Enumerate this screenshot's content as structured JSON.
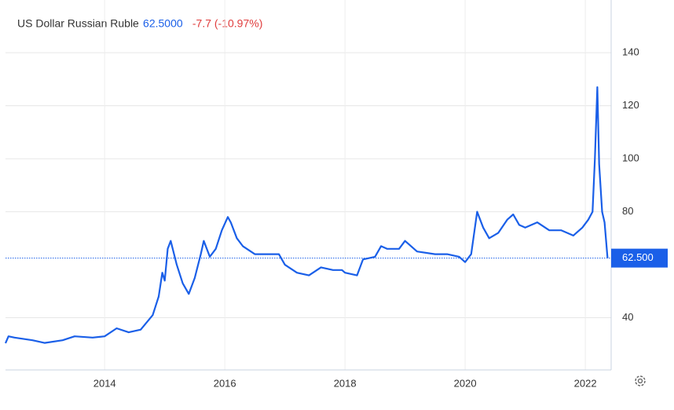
{
  "chart_data": {
    "type": "line",
    "title": "US Dollar Russian Ruble",
    "price": "62.5000",
    "change": "-7.7 (-10.97%)",
    "last_label": "62.500",
    "x": [
      2012.35,
      2012.4,
      2012.5,
      2012.8,
      2013.0,
      2013.3,
      2013.5,
      2013.8,
      2014.0,
      2014.2,
      2014.4,
      2014.6,
      2014.8,
      2014.9,
      2014.96,
      2015.0,
      2015.05,
      2015.1,
      2015.2,
      2015.3,
      2015.4,
      2015.5,
      2015.6,
      2015.65,
      2015.75,
      2015.85,
      2015.95,
      2016.05,
      2016.1,
      2016.2,
      2016.3,
      2016.5,
      2016.7,
      2016.9,
      2017.0,
      2017.2,
      2017.4,
      2017.6,
      2017.8,
      2017.95,
      2018.0,
      2018.2,
      2018.3,
      2018.5,
      2018.6,
      2018.7,
      2018.9,
      2019.0,
      2019.2,
      2019.5,
      2019.7,
      2019.9,
      2020.0,
      2020.1,
      2020.2,
      2020.3,
      2020.4,
      2020.55,
      2020.7,
      2020.8,
      2020.9,
      2021.0,
      2021.2,
      2021.4,
      2021.6,
      2021.8,
      2021.95,
      2022.05,
      2022.12,
      2022.16,
      2022.2,
      2022.23,
      2022.28,
      2022.32,
      2022.37
    ],
    "series": [
      {
        "name": "USDRUB",
        "color": "#1a5fe8",
        "values": [
          30.4,
          33,
          32.5,
          31.5,
          30.5,
          31.5,
          33,
          32.5,
          33,
          36,
          34.5,
          35.5,
          41,
          48,
          57,
          54,
          66,
          69,
          60,
          53,
          49,
          55,
          64,
          69,
          63,
          66,
          73,
          78,
          76,
          70,
          67,
          64,
          64,
          64,
          60,
          57,
          56,
          59,
          58,
          58,
          57,
          56,
          62,
          63,
          67,
          66,
          66,
          69,
          65,
          64,
          64,
          63,
          61,
          64,
          80,
          74,
          70,
          72,
          77,
          79,
          75,
          74,
          76,
          73,
          73,
          71,
          74,
          77,
          80,
          100,
          127,
          98,
          80,
          76,
          62.5
        ]
      }
    ],
    "xlim": [
      2012.35,
      2022.43
    ],
    "xticks": [
      2014,
      2016,
      2018,
      2020,
      2022
    ],
    "ylim": [
      20.3,
      159.9
    ],
    "yticks": [
      40,
      80,
      100,
      120,
      140
    ],
    "grid": true
  }
}
